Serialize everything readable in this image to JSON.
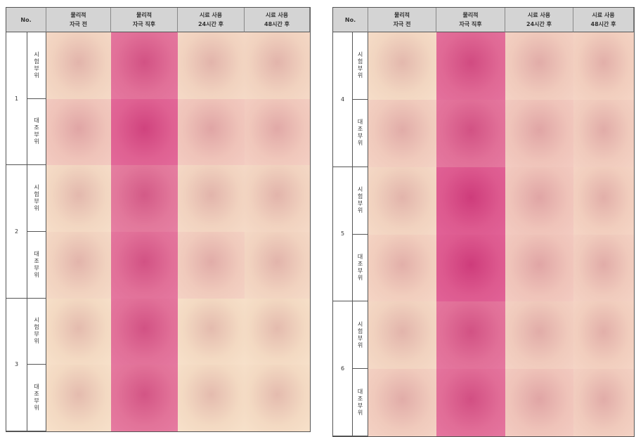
{
  "tables": [
    {
      "header": [
        [
          "No."
        ],
        [
          "물리적",
          "자극 전"
        ],
        [
          "물리적",
          "자극 직후"
        ],
        [
          "시료 사용",
          "24시간 후"
        ],
        [
          "시료 사용",
          "48시간 후"
        ]
      ],
      "groups": [
        {
          "number": "1",
          "rows": [
            "시험부위",
            "대조부위"
          ]
        },
        {
          "number": "2",
          "rows": [
            "시험부위",
            "대조부위"
          ]
        },
        {
          "number": "3",
          "rows": [
            "시험부위",
            "대조부위"
          ]
        }
      ]
    },
    {
      "header": [
        [
          "No."
        ],
        [
          "물리적",
          "자극 전"
        ],
        [
          "물리적",
          "자극 직후"
        ],
        [
          "시료 사용",
          "24시간 후"
        ],
        [
          "시료 사용",
          "48시간 후"
        ]
      ],
      "groups": [
        {
          "number": "4",
          "rows": [
            "시험부위",
            "대조부위"
          ]
        },
        {
          "number": "5",
          "rows": [
            "시험부위",
            "대조부위"
          ]
        },
        {
          "number": "6",
          "rows": [
            "시험부위",
            "대조부위"
          ]
        }
      ]
    }
  ]
}
